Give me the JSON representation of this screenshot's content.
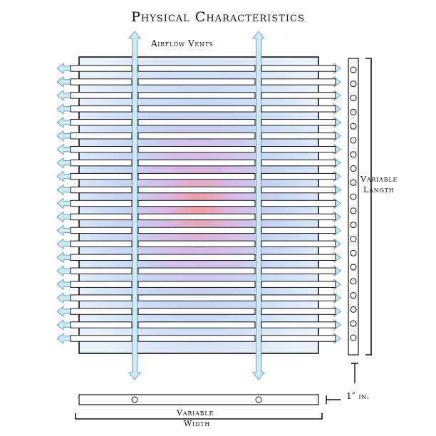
{
  "title": "Physical Characteristics",
  "labels": {
    "airflow": "Airflow Vents",
    "length_line1": "Variable",
    "length_line2": "Langth",
    "thickness": "1″ in.",
    "width_line1": "Variable",
    "width_line2": "Width"
  },
  "colors": {
    "outline": "#111111",
    "arrow_fill": "#cfe9f7",
    "arrow_stroke": "#6f9fb8",
    "heat_center": "#f29a9a",
    "heat_mid": "#c8d8f2"
  },
  "slot_rows": 21,
  "side_holes": 20
}
